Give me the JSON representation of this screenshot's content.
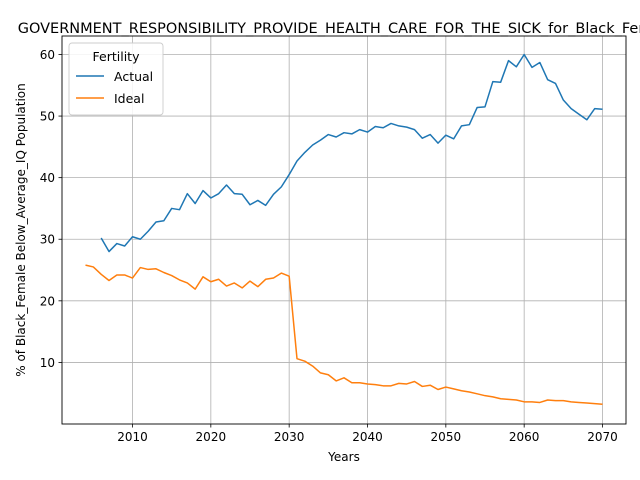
{
  "chart_data": {
    "type": "line",
    "title": "GOVERNMENT_RESPONSIBILITY_PROVIDE_HEALTH_CARE_FOR_THE_SICK_for_Black_Female",
    "xlabel": "Years",
    "ylabel": "% of Black_Female Below_Average_IQ Population",
    "xlim": [
      2001,
      2073
    ],
    "ylim": [
      0,
      63
    ],
    "xticks": [
      2010,
      2020,
      2030,
      2040,
      2050,
      2060,
      2070
    ],
    "yticks": [
      10,
      20,
      30,
      40,
      50,
      60
    ],
    "grid": true,
    "legend": {
      "title": "Fertility",
      "placement": "top-left"
    },
    "series": [
      {
        "name": "Actual",
        "color": "#1f77b4",
        "x": [
          2006,
          2007,
          2008,
          2009,
          2010,
          2011,
          2012,
          2013,
          2014,
          2015,
          2016,
          2017,
          2018,
          2019,
          2020,
          2021,
          2022,
          2023,
          2024,
          2025,
          2026,
          2027,
          2028,
          2029,
          2030,
          2031,
          2032,
          2033,
          2034,
          2035,
          2036,
          2037,
          2038,
          2039,
          2040,
          2041,
          2042,
          2043,
          2044,
          2045,
          2046,
          2047,
          2048,
          2049,
          2050,
          2051,
          2052,
          2053,
          2054,
          2055,
          2056,
          2057,
          2058,
          2059,
          2060,
          2061,
          2062,
          2063,
          2064,
          2065,
          2066,
          2067,
          2068,
          2069,
          2070
        ],
        "values": [
          30.2,
          28.0,
          29.3,
          28.9,
          30.4,
          30.0,
          31.3,
          32.8,
          33.0,
          35.0,
          34.8,
          37.4,
          35.8,
          37.9,
          36.7,
          37.4,
          38.8,
          37.4,
          37.3,
          35.6,
          36.3,
          35.5,
          37.3,
          38.5,
          40.5,
          42.7,
          44.1,
          45.3,
          46.1,
          47.0,
          46.6,
          47.3,
          47.1,
          47.8,
          47.4,
          48.3,
          48.1,
          48.8,
          48.4,
          48.2,
          47.8,
          46.4,
          47.0,
          45.6,
          46.9,
          46.3,
          48.4,
          48.6,
          51.4,
          51.5,
          55.6,
          55.5,
          59.0,
          58.0,
          60.0,
          57.9,
          58.7,
          55.9,
          55.3,
          52.6,
          51.2,
          50.3,
          49.4,
          51.2,
          51.1
        ]
      },
      {
        "name": "Ideal",
        "color": "#ff7f0e",
        "x": [
          2004,
          2005,
          2006,
          2007,
          2008,
          2009,
          2010,
          2011,
          2012,
          2013,
          2014,
          2015,
          2016,
          2017,
          2018,
          2019,
          2020,
          2021,
          2022,
          2023,
          2024,
          2025,
          2026,
          2027,
          2028,
          2029,
          2030,
          2031,
          2032,
          2033,
          2034,
          2035,
          2036,
          2037,
          2038,
          2039,
          2040,
          2041,
          2042,
          2043,
          2044,
          2045,
          2046,
          2047,
          2048,
          2049,
          2050,
          2051,
          2052,
          2053,
          2054,
          2055,
          2056,
          2057,
          2058,
          2059,
          2060,
          2061,
          2062,
          2063,
          2064,
          2065,
          2066,
          2067,
          2068,
          2069,
          2070
        ],
        "values": [
          25.8,
          25.5,
          24.3,
          23.3,
          24.2,
          24.2,
          23.7,
          25.4,
          25.1,
          25.2,
          24.6,
          24.1,
          23.4,
          22.9,
          21.9,
          23.9,
          23.1,
          23.5,
          22.4,
          22.9,
          22.1,
          23.2,
          22.3,
          23.5,
          23.7,
          24.5,
          24.0,
          10.6,
          10.2,
          9.4,
          8.3,
          8.0,
          7.0,
          7.5,
          6.7,
          6.7,
          6.5,
          6.4,
          6.2,
          6.2,
          6.6,
          6.5,
          6.9,
          6.1,
          6.3,
          5.6,
          6.0,
          5.7,
          5.4,
          5.2,
          4.9,
          4.6,
          4.4,
          4.1,
          4.0,
          3.9,
          3.6,
          3.6,
          3.5,
          3.9,
          3.8,
          3.8,
          3.6,
          3.5,
          3.4,
          3.3,
          3.2
        ]
      }
    ]
  }
}
